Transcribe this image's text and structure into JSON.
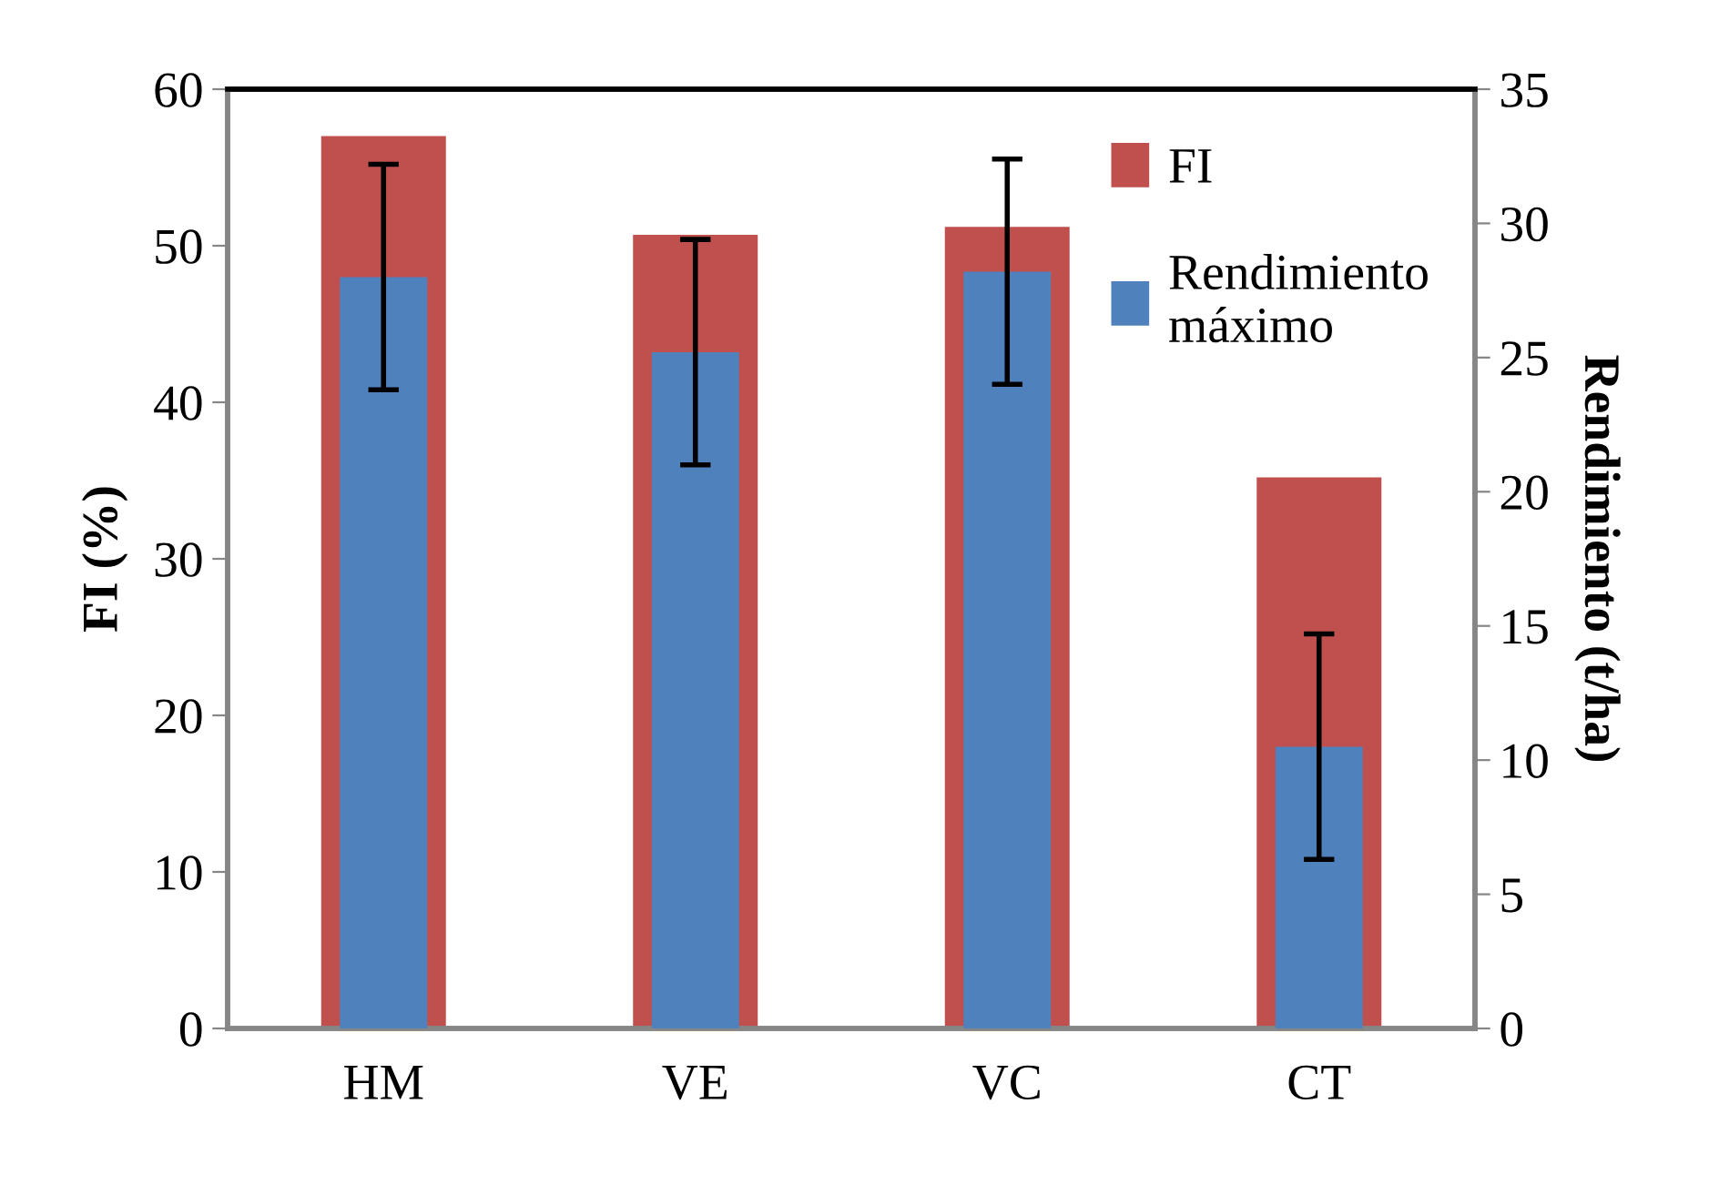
{
  "chart_data": {
    "type": "bar",
    "ylabel": "FI (%)",
    "y2label": "Rendimiento (t/ha)",
    "categories": [
      "HM",
      "VE",
      "VC",
      "CT"
    ],
    "series": [
      {
        "name": "FI",
        "color": "#c0504d",
        "values": [
          57.0,
          50.7,
          51.2,
          35.2
        ]
      },
      {
        "name": "Rendimiento\nmáximo",
        "color": "#4f81bd",
        "axis": "y2",
        "values": [
          28.0,
          25.2,
          28.2,
          10.5
        ],
        "errors": [
          4.2,
          4.2,
          4.2,
          4.2
        ]
      }
    ],
    "ylim": [
      0,
      60
    ],
    "yticks": [
      0,
      10,
      20,
      30,
      40,
      50,
      60
    ],
    "y2lim": [
      0,
      35
    ],
    "y2ticks": [
      0,
      5,
      10,
      15,
      20,
      25,
      30,
      35
    ],
    "grid": false,
    "legend": "top right"
  }
}
